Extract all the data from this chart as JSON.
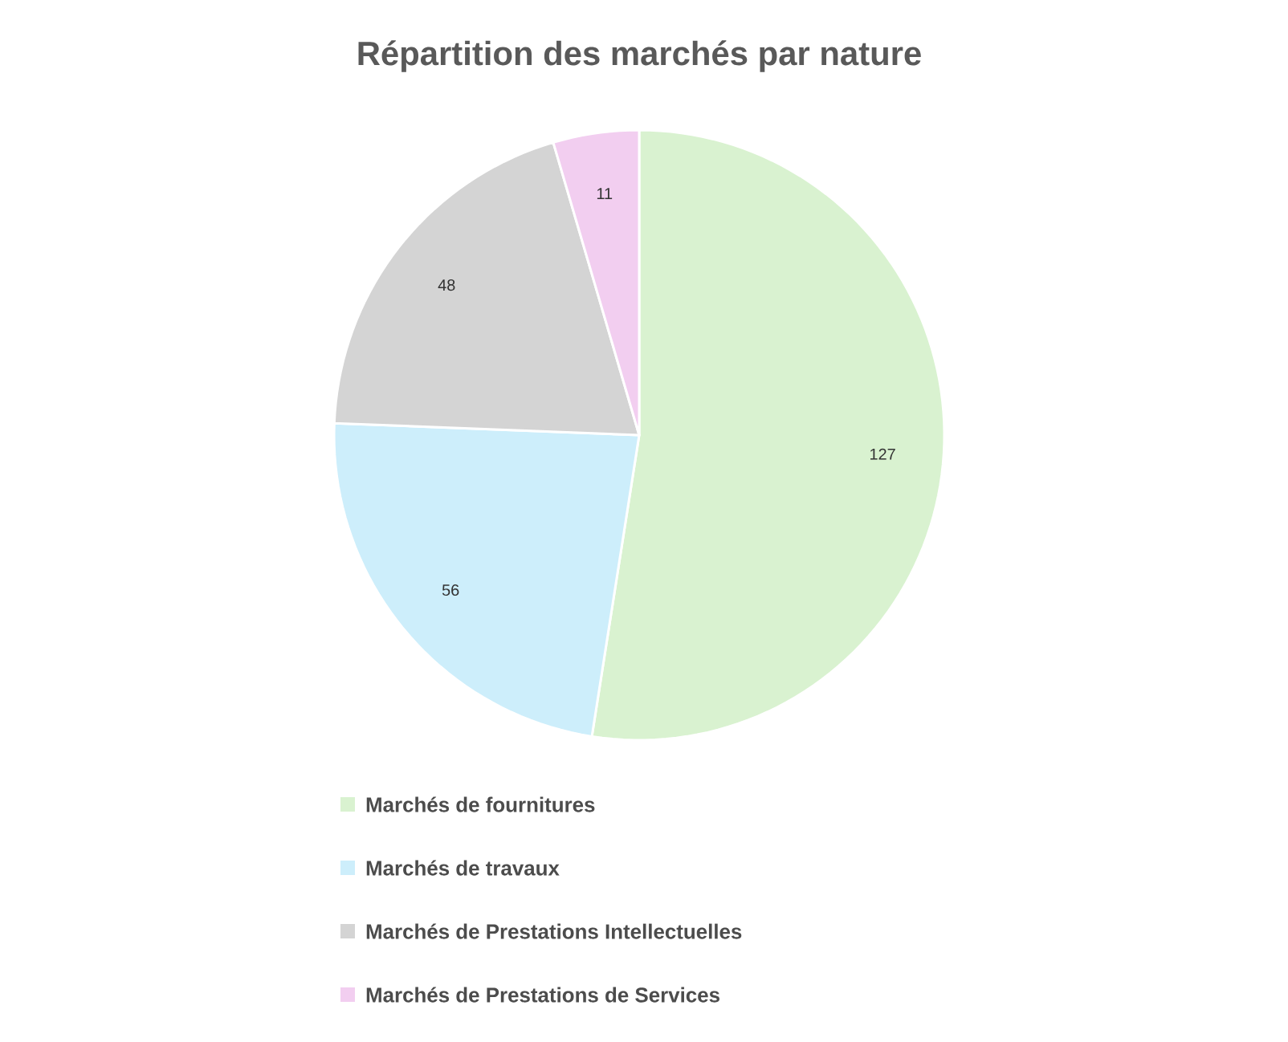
{
  "chart_data": {
    "type": "pie",
    "title": "Répartition des marchés par nature",
    "categories": [
      "Marchés de fournitures",
      "Marchés de travaux",
      "Marchés de Prestations Intellectuelles",
      "Marchés de Prestations de Services"
    ],
    "values": [
      127,
      56,
      48,
      11
    ],
    "colors": [
      "#d9f2d0",
      "#cdeefb",
      "#d4d4d4",
      "#f2cef0"
    ],
    "data_labels": true,
    "legend": "bottom"
  }
}
